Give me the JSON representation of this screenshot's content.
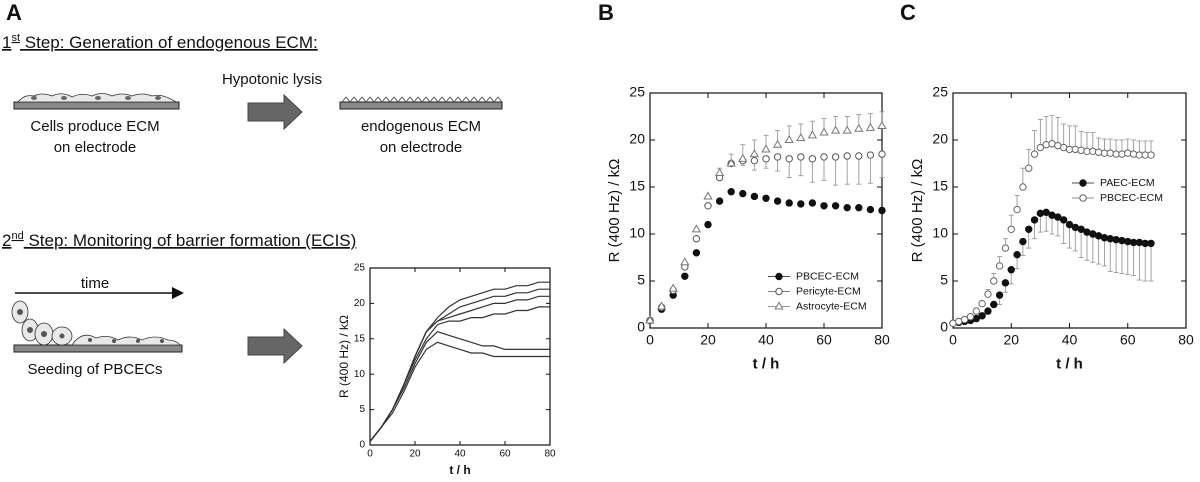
{
  "figure": {
    "panel_labels": [
      "A",
      "B",
      "C"
    ]
  },
  "diagram": {
    "step1": {
      "ordinal": "1",
      "suffix": "st",
      "text": " Step: Generation of endogenous ECM:"
    },
    "cells_label": [
      "Cells produce ECM",
      "on electrode"
    ],
    "lysis_label": "Hypotonic lysis",
    "ecm_label": [
      "endogenous ECM",
      "on electrode"
    ],
    "step2": {
      "ordinal": "2",
      "suffix": "nd",
      "text": " Step: Monitoring of barrier formation (ECIS)"
    },
    "time_label": "time",
    "seeding_label": "Seeding of PBCECs"
  },
  "chart_data": [
    {
      "type": "line",
      "xlabel": "t /  h",
      "ylabel": "R (400 Hz) / kΩ",
      "xlim": [
        0,
        80
      ],
      "ylim": [
        0,
        25
      ],
      "xticks": [
        0,
        20,
        40,
        60,
        80
      ],
      "yticks": [
        0,
        5,
        10,
        15,
        20,
        25
      ],
      "x": [
        0,
        5,
        10,
        15,
        20,
        25,
        30,
        35,
        40,
        45,
        50,
        55,
        60,
        65,
        70,
        75,
        80
      ],
      "series": [
        {
          "color": "#333333",
          "values": [
            0.5,
            2.5,
            5,
            8.5,
            12.5,
            16,
            18,
            19.5,
            20.5,
            21,
            21.5,
            22,
            22,
            22.5,
            22.5,
            23,
            23
          ]
        },
        {
          "color": "#333333",
          "values": [
            0.5,
            2.5,
            5,
            8.5,
            12.5,
            16,
            17.5,
            18.5,
            19.5,
            20,
            20.5,
            21,
            21,
            21.5,
            21.5,
            22,
            22
          ]
        },
        {
          "color": "#333333",
          "values": [
            0.5,
            2.5,
            5,
            8.5,
            12.5,
            16,
            17.5,
            18,
            18.5,
            19,
            19.5,
            20,
            20,
            20.5,
            20.5,
            21,
            21
          ]
        },
        {
          "color": "#333333",
          "values": [
            0.5,
            2.5,
            5,
            8.5,
            12,
            15,
            17,
            17.5,
            17.5,
            18,
            18,
            18.5,
            18.5,
            19,
            19,
            19.5,
            19.5
          ]
        },
        {
          "color": "#333333",
          "values": [
            0.5,
            2.5,
            5,
            8,
            11.5,
            14.5,
            16,
            15.5,
            15,
            14.5,
            14,
            14,
            13.5,
            13.5,
            13.5,
            13.5,
            13.5
          ]
        },
        {
          "color": "#333333",
          "values": [
            0.5,
            2.5,
            4.5,
            7.5,
            11,
            13.5,
            14.5,
            14,
            13.5,
            13,
            13,
            12.5,
            12.5,
            12.5,
            12.5,
            12.5,
            12.5
          ]
        }
      ]
    },
    {
      "type": "scatter",
      "xlabel": "t / h",
      "ylabel": "R (400 Hz) / kΩ",
      "xlim": [
        0,
        80
      ],
      "ylim": [
        0,
        25
      ],
      "xticks": [
        0,
        20,
        40,
        60,
        80
      ],
      "yticks": [
        0,
        5,
        10,
        15,
        20,
        25
      ],
      "legend": "lower right",
      "x": [
        0,
        4,
        8,
        12,
        16,
        20,
        24,
        28,
        32,
        36,
        40,
        44,
        48,
        52,
        56,
        60,
        64,
        68,
        72,
        76,
        80
      ],
      "series": [
        {
          "name": "PBCEC-ECM",
          "color": "#111111",
          "marker": "circle-filled",
          "values": [
            0.8,
            2,
            3.5,
            5.5,
            8,
            11,
            13.5,
            14.5,
            14.3,
            14,
            13.8,
            13.5,
            13.3,
            13.2,
            13.3,
            13,
            13,
            12.8,
            12.8,
            12.6,
            12.5
          ]
        },
        {
          "name": "Pericyte-ECM",
          "color": "#555555",
          "marker": "circle-open",
          "error_side": "down",
          "values": [
            0.8,
            2.2,
            4,
            6.5,
            9.5,
            13,
            16,
            17.5,
            17.8,
            17.8,
            18,
            18.2,
            18,
            18.2,
            18,
            18.2,
            18.2,
            18.3,
            18.3,
            18.4,
            18.5
          ],
          "errors": [
            null,
            null,
            null,
            null,
            null,
            null,
            null,
            null,
            0.5,
            1,
            1,
            1.5,
            2,
            2,
            2.5,
            2.5,
            3,
            3,
            3,
            3,
            2.5
          ]
        },
        {
          "name": "Astrocyte-ECM",
          "color": "#777777",
          "marker": "triangle-open",
          "error_side": "up",
          "values": [
            0.8,
            2.3,
            4.2,
            7,
            10.5,
            14,
            16.5,
            17.5,
            18,
            18.5,
            19,
            19.5,
            20,
            20.2,
            20.5,
            20.8,
            21,
            21,
            21.2,
            21.3,
            21.5
          ],
          "errors": [
            null,
            null,
            null,
            null,
            null,
            null,
            0.5,
            1,
            1.5,
            1.5,
            1.5,
            1.5,
            1.5,
            1.5,
            1.5,
            1.5,
            1.5,
            1.5,
            1.5,
            1.5,
            1.5
          ]
        }
      ]
    },
    {
      "type": "scatter",
      "xlabel": "t / h",
      "ylabel": "R (400 Hz) / kΩ",
      "xlim": [
        0,
        80
      ],
      "ylim": [
        0,
        25
      ],
      "xticks": [
        0,
        20,
        40,
        60,
        80
      ],
      "yticks": [
        0,
        5,
        10,
        15,
        20,
        25
      ],
      "legend": "center right",
      "x": [
        0,
        2,
        4,
        6,
        8,
        10,
        12,
        14,
        16,
        18,
        20,
        22,
        24,
        26,
        28,
        30,
        32,
        34,
        36,
        38,
        40,
        42,
        44,
        46,
        48,
        50,
        52,
        54,
        56,
        58,
        60,
        62,
        64,
        66,
        68
      ],
      "series": [
        {
          "name": "PAEC-ECM",
          "color": "#111111",
          "marker": "circle-filled",
          "error_side": "down",
          "values": [
            0.5,
            0.6,
            0.7,
            0.8,
            1,
            1.3,
            1.8,
            2.5,
            3.5,
            4.8,
            6.2,
            7.8,
            9.2,
            10.5,
            11.5,
            12.2,
            12.3,
            12,
            11.8,
            11.5,
            11,
            10.7,
            10.5,
            10.2,
            10,
            9.8,
            9.6,
            9.5,
            9.4,
            9.3,
            9.2,
            9.1,
            9.1,
            9,
            9
          ],
          "errors": [
            null,
            null,
            null,
            null,
            null,
            null,
            null,
            null,
            1,
            1,
            1.5,
            1.5,
            1.5,
            2,
            2,
            2,
            2,
            2,
            2,
            2.5,
            2.5,
            2.5,
            3,
            3,
            3,
            3,
            3,
            3.5,
            3.5,
            3.5,
            3.5,
            3.5,
            4,
            4,
            4
          ]
        },
        {
          "name": "PBCEC-ECM",
          "color": "#666666",
          "marker": "circle-open",
          "error_side": "up",
          "values": [
            0.5,
            0.7,
            0.9,
            1.2,
            1.8,
            2.6,
            3.6,
            5,
            6.6,
            8.5,
            10.5,
            12.6,
            15,
            17,
            18.5,
            19.2,
            19.5,
            19.6,
            19.4,
            19.2,
            19,
            19,
            18.9,
            18.8,
            18.8,
            18.7,
            18.6,
            18.6,
            18.5,
            18.5,
            18.6,
            18.5,
            18.4,
            18.4,
            18.4
          ],
          "errors": [
            null,
            null,
            null,
            null,
            null,
            null,
            0.5,
            0.8,
            1,
            1,
            1.5,
            1.5,
            2,
            2,
            2.5,
            3,
            3,
            3,
            3,
            2.5,
            2.5,
            2.5,
            2,
            2,
            2,
            1.5,
            1.5,
            1.5,
            1.5,
            1.5,
            1.5,
            1.5,
            1.5,
            1.5,
            1.5
          ]
        }
      ]
    }
  ]
}
